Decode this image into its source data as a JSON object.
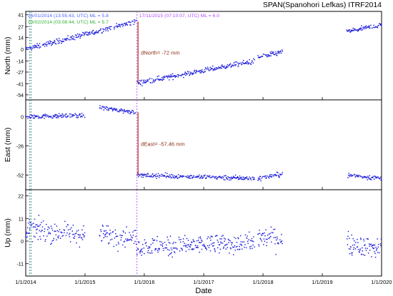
{
  "chart_data": {
    "type": "scatter",
    "title": "SPAN(Spanohori Lefkas) ITRF2014",
    "xlabel": "Date",
    "x_range": [
      "2014-01-01",
      "2020-01-01"
    ],
    "x_ticks": [
      "1/1/2014",
      "1/1/2015",
      "1/1/2016",
      "1/1/2017",
      "1/1/2018",
      "1/1/2019",
      "1/1/2020"
    ],
    "events": [
      {
        "date": "2014-01-26",
        "label": "26/01/2014 (13:55:43, UTC) ML = 5.8",
        "color": "#4d66ff"
      },
      {
        "date": "2014-02-03",
        "label": "03/02/2014 (03:08:44, UTC) ML = 5.7",
        "color": "#33b233"
      },
      {
        "date": "2015-11-17",
        "label": "17/11/2015 (07:10:07, UTC) ML = 6.0",
        "color": "#b04dff"
      }
    ],
    "panels": [
      {
        "ylabel": "North (mm)",
        "ylim": [
          -60,
          45
        ],
        "yticks": [
          "41",
          "27",
          "14",
          "0",
          "-14",
          "-27",
          "-41",
          "-54"
        ],
        "offset_label": "dNorth= -72 mm",
        "segments": [
          {
            "start": "2014-01-01",
            "end": "2015-11-16",
            "y_start": 0,
            "y_end": 33,
            "noise": 3
          },
          {
            "start": "2015-11-18",
            "end": "2017-11-10",
            "y_start": -40,
            "y_end": -14,
            "noise": 3
          },
          {
            "start": "2017-12-01",
            "end": "2018-05-01",
            "y_start": -10,
            "y_end": -3,
            "noise": 3
          },
          {
            "start": "2019-06-01",
            "end": "2020-01-01",
            "y_start": 21,
            "y_end": 29,
            "noise": 3
          }
        ]
      },
      {
        "ylabel": "East (mm)",
        "ylim": [
          -65,
          15
        ],
        "yticks": [
          "0",
          "-26",
          "-52"
        ],
        "offset_label": "dEast= -57.46 mm",
        "segments": [
          {
            "start": "2014-01-01",
            "end": "2015-01-01",
            "y_start": 0,
            "y_end": 1,
            "noise": 2
          },
          {
            "start": "2015-04-01",
            "end": "2015-11-16",
            "y_start": 8,
            "y_end": 4,
            "noise": 2
          },
          {
            "start": "2015-11-18",
            "end": "2017-11-10",
            "y_start": -52,
            "y_end": -55,
            "noise": 2
          },
          {
            "start": "2017-12-01",
            "end": "2018-05-01",
            "y_start": -55,
            "y_end": -51,
            "noise": 2
          },
          {
            "start": "2019-06-01",
            "end": "2020-01-01",
            "y_start": -52,
            "y_end": -55,
            "noise": 2
          }
        ]
      },
      {
        "ylabel": "Up (mm)",
        "ylim": [
          -17,
          25
        ],
        "yticks": [
          "22",
          "11",
          "0",
          "-11"
        ],
        "segments": [
          {
            "start": "2014-01-01",
            "end": "2015-01-01",
            "y_start": 6,
            "y_end": 3,
            "noise": 5
          },
          {
            "start": "2015-04-01",
            "end": "2015-11-16",
            "y_start": 4,
            "y_end": 1,
            "noise": 5
          },
          {
            "start": "2015-11-18",
            "end": "2017-11-10",
            "y_start": -3,
            "y_end": -1,
            "noise": 5
          },
          {
            "start": "2017-12-01",
            "end": "2018-05-01",
            "y_start": 2,
            "y_end": 1,
            "noise": 5
          },
          {
            "start": "2019-06-01",
            "end": "2020-01-01",
            "y_start": -1,
            "y_end": -4,
            "noise": 5
          }
        ]
      }
    ]
  },
  "colors": {
    "points": "#2222dd",
    "offset_line": "#c0392b",
    "offset_text": "#8b2d14",
    "axis": "#000000"
  }
}
